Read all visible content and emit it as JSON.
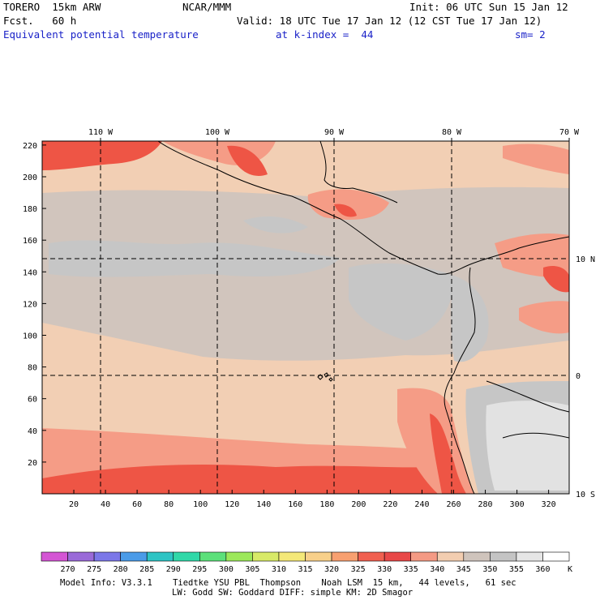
{
  "header": {
    "model": "TORERO  15km ARW",
    "org": "NCAR/MMM",
    "init": "Init: 06 UTC Sun 15 Jan 12",
    "fcst": "Fcst.   60 h",
    "valid": "Valid: 18 UTC Tue 17 Jan 12 (12 CST Tue 17 Jan 12)",
    "field": "Equivalent potential temperature",
    "level": "at k-index =  44",
    "smooth": "sm= 2"
  },
  "axes": {
    "lon_labels": [
      "110 W",
      "100 W",
      "90 W",
      "80 W",
      "70 W"
    ],
    "lat_labels": [
      "10 N",
      "0",
      "10 S"
    ],
    "y_ticks": [
      "220",
      "200",
      "180",
      "160",
      "140",
      "120",
      "100",
      "80",
      "60",
      "40",
      "20"
    ],
    "x_ticks": [
      "20",
      "40",
      "60",
      "80",
      "100",
      "120",
      "140",
      "160",
      "180",
      "200",
      "220",
      "240",
      "260",
      "280",
      "300",
      "320"
    ]
  },
  "colorbar": {
    "labels": [
      "270",
      "275",
      "280",
      "285",
      "290",
      "295",
      "300",
      "305",
      "310",
      "315",
      "320",
      "325",
      "330",
      "335",
      "340",
      "345",
      "350",
      "355",
      "360"
    ],
    "unit": "K",
    "colors": [
      "#d455d4",
      "#9a6ad8",
      "#7b77e8",
      "#4a9be8",
      "#2ec4c4",
      "#30d8a8",
      "#5ce07a",
      "#9ce85a",
      "#d8ea68",
      "#f4e878",
      "#f8d08a",
      "#f8a070",
      "#f06050",
      "#e84848",
      "#f49a84",
      "#f2cdb0",
      "#cfc4bc",
      "#c4c4c4",
      "#e6e6e6",
      "#ffffff"
    ]
  },
  "map_colors": {
    "hot": "#ee5545",
    "warm": "#f59c86",
    "mild": "#f2cfb4",
    "cool": "#d1c5bd",
    "grey": "#c6c6c6",
    "pale": "#e2e2e2"
  },
  "footer": {
    "line1": "Model Info: V3.3.1    Tiedtke YSU PBL  Thompson    Noah LSM  15 km,   44 levels,   61 sec",
    "line2": "LW: Godd SW: Goddard DIFF: simple KM: 2D Smagor"
  }
}
